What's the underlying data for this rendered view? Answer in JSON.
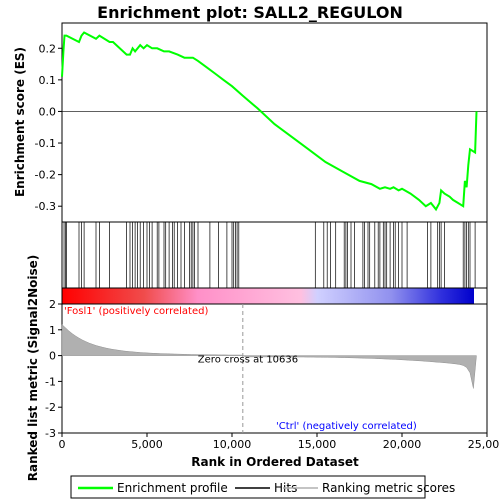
{
  "chart_data": {
    "type": "line",
    "title": "Enrichment plot: SALL2_REGULON",
    "ylabel_top": "Enrichment score (ES)",
    "ylabel_bottom": "Ranked list metric (Signal2Noise)",
    "xlabel": "Rank in Ordered Dataset",
    "xlim": [
      0,
      25000
    ],
    "x_ticks": [
      0,
      5000,
      10000,
      15000,
      20000,
      25000
    ],
    "x_tick_labels": [
      "0",
      "5,000",
      "10,000",
      "15,000",
      "20,000",
      "25,000"
    ],
    "es_ylim": [
      -0.35,
      0.28
    ],
    "es_ticks": [
      0.2,
      0.1,
      0.0,
      -0.1,
      -0.2,
      -0.3
    ],
    "es_tick_labels": [
      "0.2",
      "0.1",
      "0.0",
      "-0.1",
      "-0.2",
      "-0.3"
    ],
    "metric_ylim": [
      -3,
      2
    ],
    "metric_ticks": [
      2,
      1,
      0,
      -1,
      -2,
      -3
    ],
    "metric_tick_labels": [
      "2",
      "1",
      "0",
      "-1",
      "-2",
      "-3"
    ],
    "zero_cross_rank": 10636,
    "zero_cross_label": "Zero cross at 10636",
    "positive_label": "'Fosl1' (positively correlated)",
    "negative_label": "'Ctrl' (negatively correlated)",
    "colors": {
      "es_line": "#00ff00",
      "positive_text": "#ff0000",
      "negative_text": "#0000ff",
      "metric_fill": "#b0b0b0"
    },
    "series": [
      {
        "name": "Enrichment profile",
        "x": [
          0,
          80,
          150,
          260,
          1000,
          1150,
          1300,
          2000,
          2200,
          2800,
          3000,
          3800,
          4000,
          4150,
          4300,
          4600,
          4800,
          5000,
          5300,
          5600,
          6000,
          6300,
          6800,
          7200,
          7700,
          8000,
          8500,
          9000,
          9500,
          10000,
          10636,
          11500,
          12500,
          13500,
          14500,
          15500,
          16500,
          17500,
          18200,
          18700,
          19000,
          19300,
          19500,
          19800,
          20000,
          20500,
          21000,
          21400,
          21700,
          22000,
          22200,
          22300,
          22500,
          22800,
          23000,
          23300,
          23600,
          23700,
          23800,
          23900,
          24000,
          24300,
          24380
        ],
        "y": [
          0.11,
          0.19,
          0.24,
          0.24,
          0.22,
          0.24,
          0.25,
          0.23,
          0.24,
          0.22,
          0.22,
          0.18,
          0.18,
          0.2,
          0.19,
          0.21,
          0.2,
          0.21,
          0.2,
          0.2,
          0.19,
          0.19,
          0.18,
          0.17,
          0.17,
          0.16,
          0.14,
          0.12,
          0.1,
          0.08,
          0.05,
          0.01,
          -0.04,
          -0.08,
          -0.12,
          -0.16,
          -0.19,
          -0.22,
          -0.23,
          -0.245,
          -0.24,
          -0.245,
          -0.24,
          -0.25,
          -0.245,
          -0.26,
          -0.28,
          -0.3,
          -0.29,
          -0.31,
          -0.29,
          -0.25,
          -0.26,
          -0.27,
          -0.28,
          -0.29,
          -0.3,
          -0.22,
          -0.24,
          -0.17,
          -0.12,
          -0.13,
          0.0
        ]
      }
    ],
    "hits": [
      120,
      200,
      260,
      1000,
      1150,
      1300,
      2000,
      2200,
      2800,
      3800,
      4000,
      4150,
      4300,
      4450,
      4600,
      4800,
      5000,
      5150,
      5300,
      5600,
      5700,
      6000,
      6100,
      6300,
      6500,
      6600,
      6800,
      7000,
      7200,
      7500,
      7600,
      7700,
      7800,
      8000,
      8700,
      9200,
      9700,
      10000,
      10100,
      10200,
      10300,
      10400,
      14900,
      15400,
      15600,
      15800,
      16100,
      16600,
      16700,
      16800,
      17000,
      17200,
      17700,
      17800,
      18000,
      18100,
      18400,
      18600,
      18700,
      18900,
      19000,
      19100,
      19300,
      19500,
      19600,
      19800,
      20000,
      20300,
      21500,
      21700,
      22100,
      22200,
      22300,
      22500,
      23600,
      23700,
      23800,
      23900,
      24000,
      24300
    ]
  },
  "legend": {
    "items": [
      {
        "label": "Enrichment profile",
        "color": "#00ff00"
      },
      {
        "label": "Hits",
        "color": "#000000"
      },
      {
        "label": "Ranking metric scores",
        "color": "#b0b0b0"
      }
    ]
  }
}
